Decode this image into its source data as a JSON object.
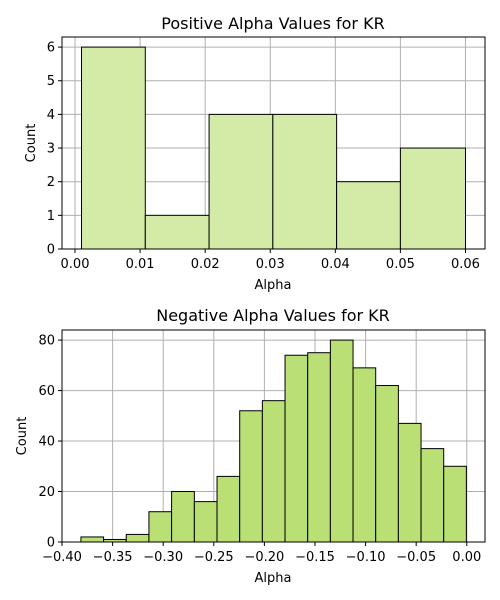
{
  "chart_data": [
    {
      "type": "bar",
      "subtype": "histogram",
      "title": "Positive Alpha Values for KR",
      "xlabel": "Alpha",
      "ylabel": "Count",
      "bin_edges": [
        0.001,
        0.0108,
        0.0206,
        0.0304,
        0.0402,
        0.05,
        0.06
      ],
      "values": [
        6,
        1,
        4,
        4,
        2,
        3
      ],
      "xlim": [
        -0.002,
        0.063
      ],
      "ylim": [
        0,
        6.3
      ],
      "x_ticks": [
        0.0,
        0.01,
        0.02,
        0.03,
        0.04,
        0.05,
        0.06
      ],
      "x_tick_labels": [
        "0.00",
        "0.01",
        "0.02",
        "0.03",
        "0.04",
        "0.05",
        "0.06"
      ],
      "y_ticks": [
        0,
        1,
        2,
        3,
        4,
        5,
        6
      ],
      "y_tick_labels": [
        "0",
        "1",
        "2",
        "3",
        "4",
        "5",
        "6"
      ],
      "bar_color": "#d4eba8",
      "edge_color": "#000000",
      "grid": true
    },
    {
      "type": "bar",
      "subtype": "histogram",
      "title": "Negative Alpha Values for KR",
      "xlabel": "Alpha",
      "ylabel": "Count",
      "bin_edges": [
        -0.3813,
        -0.3589,
        -0.3365,
        -0.3141,
        -0.2917,
        -0.2692,
        -0.2468,
        -0.2244,
        -0.202,
        -0.1796,
        -0.1572,
        -0.1348,
        -0.1124,
        -0.09,
        -0.0676,
        -0.0452,
        -0.0228,
        -0.0004
      ],
      "values": [
        2,
        1,
        3,
        12,
        20,
        16,
        26,
        52,
        56,
        74,
        75,
        80,
        69,
        62,
        47,
        37,
        30
      ],
      "xlim": [
        -0.4,
        0.018
      ],
      "ylim": [
        0,
        84
      ],
      "x_ticks": [
        -0.4,
        -0.35,
        -0.3,
        -0.25,
        -0.2,
        -0.15,
        -0.1,
        -0.05,
        0.0
      ],
      "x_tick_labels": [
        "−0.40",
        "−0.35",
        "−0.30",
        "−0.25",
        "−0.20",
        "−0.15",
        "−0.10",
        "−0.05",
        "0.00"
      ],
      "y_ticks": [
        0,
        20,
        40,
        60,
        80
      ],
      "y_tick_labels": [
        "0",
        "20",
        "40",
        "60",
        "80"
      ],
      "bar_color": "#b9df75",
      "edge_color": "#000000",
      "grid": true
    }
  ]
}
